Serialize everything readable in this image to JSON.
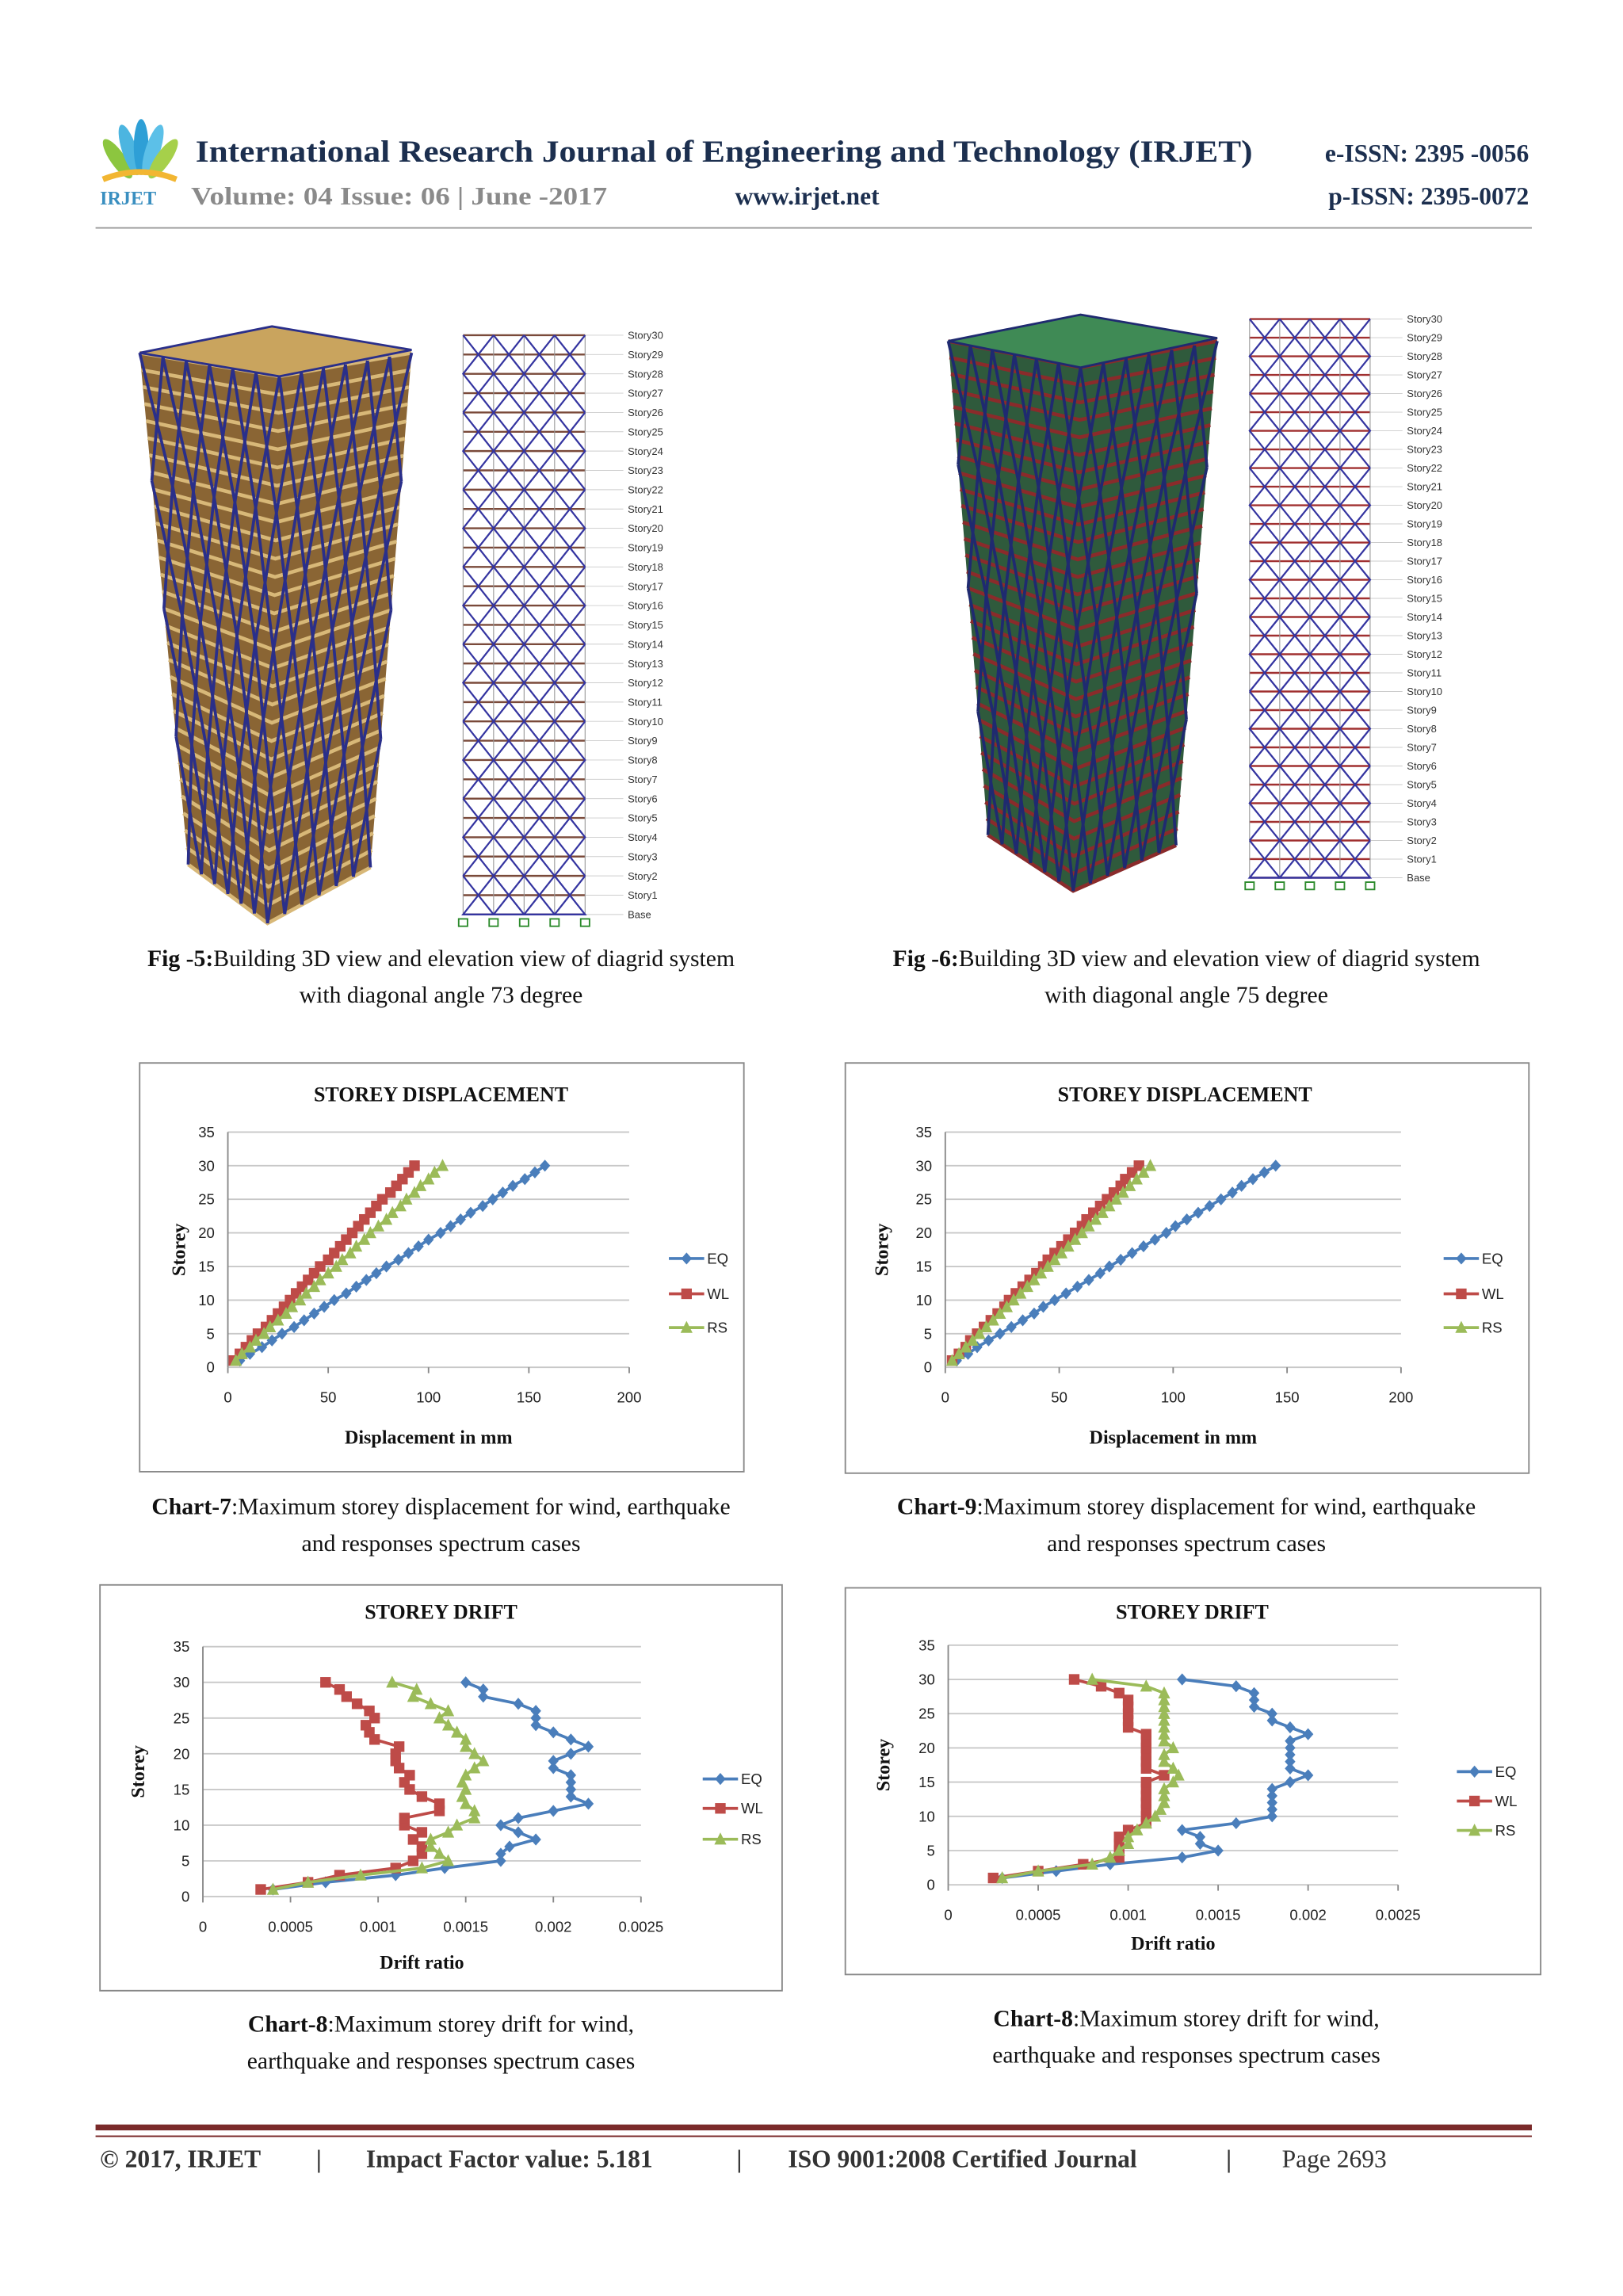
{
  "header": {
    "logo_text": "IRJET",
    "journal": "International Research Journal of Engineering and Technology (IRJET)",
    "eissn": "e-ISSN: 2395 -0056",
    "volume": "Volume: 04 Issue: 06 | June -2017",
    "website": "www.irjet.net",
    "pissn": "p-ISSN: 2395-0072"
  },
  "figures": [
    {
      "label": "Fig -5:",
      "text": "Building 3D view and elevation view of diagrid system with diagonal angle 73 degree",
      "story_labels": [
        "Story30",
        "Story29",
        "Story28",
        "Story27",
        "Story26",
        "Story25",
        "Story24",
        "Story23",
        "Story22",
        "Story21",
        "Story20",
        "Story19",
        "Story18",
        "Story17",
        "Story16",
        "Story15",
        "Story14",
        "Story13",
        "Story12",
        "Story11",
        "Story10",
        "Story9",
        "Story8",
        "Story7",
        "Story6",
        "Story5",
        "Story4",
        "Story3",
        "Story2",
        "Story1",
        "Base"
      ]
    },
    {
      "label": "Fig -6:",
      "text": "Building 3D view and elevation view of diagrid system with diagonal angle 75 degree",
      "story_labels": [
        "Story30",
        "Story29",
        "Story28",
        "Story27",
        "Story26",
        "Story25",
        "Story24",
        "Story23",
        "Story22",
        "Story21",
        "Story20",
        "Story19",
        "Story18",
        "Story17",
        "Story16",
        "Story15",
        "Story14",
        "Story13",
        "Story12",
        "Story11",
        "Story10",
        "Story9",
        "Story8",
        "Story7",
        "Story6",
        "Story5",
        "Story4",
        "Story3",
        "Story2",
        "Story1",
        "Base"
      ]
    }
  ],
  "chart_data": [
    {
      "type": "line",
      "title": "STOREY DISPLACEMENT",
      "x_label": "Displacement in mm",
      "y_label": "Storey",
      "xlim": [
        0,
        200
      ],
      "xticks": [
        0,
        50,
        100,
        150,
        200
      ],
      "ylim": [
        0,
        35
      ],
      "yticks": [
        0,
        5,
        10,
        15,
        20,
        25,
        30,
        35
      ],
      "grid": true,
      "legend": "right",
      "y": [
        1,
        2,
        3,
        4,
        5,
        6,
        7,
        8,
        9,
        10,
        11,
        12,
        13,
        14,
        15,
        16,
        17,
        18,
        19,
        20,
        21,
        22,
        23,
        24,
        25,
        26,
        27,
        28,
        29,
        30
      ],
      "series": [
        {
          "name": "EQ",
          "color": "#4a7ebb",
          "marker": "diamond",
          "x": [
            6,
            11,
            17,
            22,
            27,
            33,
            38,
            43,
            48,
            53,
            59,
            64,
            69,
            74,
            79,
            85,
            90,
            95,
            100,
            106,
            111,
            116,
            121,
            127,
            132,
            137,
            142,
            148,
            153,
            158
          ]
        },
        {
          "name": "WL",
          "color": "#be4b48",
          "marker": "square",
          "x": [
            3,
            6,
            9,
            12,
            15,
            19,
            22,
            25,
            28,
            31,
            34,
            37,
            40,
            43,
            46,
            50,
            53,
            56,
            59,
            62,
            65,
            68,
            71,
            74,
            77,
            81,
            84,
            87,
            90,
            93
          ]
        },
        {
          "name": "RS",
          "color": "#9bbb59",
          "marker": "triangle",
          "x": [
            4,
            7,
            11,
            14,
            18,
            21,
            25,
            29,
            32,
            36,
            39,
            43,
            46,
            50,
            54,
            57,
            61,
            64,
            68,
            71,
            75,
            79,
            82,
            86,
            89,
            93,
            96,
            100,
            103,
            107
          ]
        }
      ],
      "caption_label": "Chart-7",
      "caption_text": ":Maximum storey displacement for wind, earthquake and responses spectrum cases"
    },
    {
      "type": "line",
      "title": "STOREY DISPLACEMENT",
      "x_label": "Displacement in mm",
      "y_label": "Storey",
      "xlim": [
        0,
        200
      ],
      "xticks": [
        0,
        50,
        100,
        150,
        200
      ],
      "ylim": [
        0,
        35
      ],
      "yticks": [
        0,
        5,
        10,
        15,
        20,
        25,
        30,
        35
      ],
      "grid": true,
      "legend": "right",
      "y": [
        1,
        2,
        3,
        4,
        5,
        6,
        7,
        8,
        9,
        10,
        11,
        12,
        13,
        14,
        15,
        16,
        17,
        18,
        19,
        20,
        21,
        22,
        23,
        24,
        25,
        26,
        27,
        28,
        29,
        30
      ],
      "series": [
        {
          "name": "EQ",
          "color": "#4a7ebb",
          "marker": "diamond",
          "x": [
            5,
            10,
            14,
            19,
            24,
            29,
            34,
            39,
            43,
            48,
            53,
            58,
            63,
            68,
            72,
            77,
            82,
            87,
            92,
            97,
            101,
            106,
            111,
            116,
            121,
            126,
            130,
            135,
            140,
            145
          ]
        },
        {
          "name": "WL",
          "color": "#be4b48",
          "marker": "square",
          "x": [
            3,
            6,
            9,
            11,
            14,
            17,
            20,
            23,
            26,
            28,
            31,
            34,
            37,
            40,
            43,
            45,
            48,
            51,
            54,
            57,
            60,
            62,
            65,
            68,
            71,
            74,
            77,
            79,
            82,
            85
          ]
        },
        {
          "name": "RS",
          "color": "#9bbb59",
          "marker": "triangle",
          "x": [
            3,
            6,
            9,
            12,
            15,
            18,
            21,
            24,
            27,
            30,
            33,
            36,
            39,
            42,
            45,
            48,
            51,
            54,
            57,
            60,
            63,
            66,
            69,
            72,
            75,
            78,
            81,
            84,
            87,
            90
          ]
        }
      ],
      "caption_label": "Chart-9",
      "caption_text": ":Maximum storey displacement for wind, earthquake and responses spectrum cases"
    },
    {
      "type": "line",
      "title": "STOREY DRIFT",
      "x_label": "Drift ratio",
      "y_label": "Storey",
      "xlim": [
        0,
        0.0025
      ],
      "xticks": [
        0,
        0.0005,
        0.001,
        0.0015,
        0.002,
        0.0025
      ],
      "ylim": [
        0,
        35
      ],
      "yticks": [
        0,
        5,
        10,
        15,
        20,
        25,
        30,
        35
      ],
      "grid": true,
      "legend": "right",
      "y": [
        1,
        2,
        3,
        4,
        5,
        6,
        7,
        8,
        9,
        10,
        11,
        12,
        13,
        14,
        15,
        16,
        17,
        18,
        19,
        20,
        21,
        22,
        23,
        24,
        25,
        26,
        27,
        28,
        29,
        30
      ],
      "series": [
        {
          "name": "EQ",
          "color": "#4a7ebb",
          "marker": "diamond",
          "x": [
            0.0004,
            0.0007,
            0.0011,
            0.00138,
            0.0017,
            0.0017,
            0.00175,
            0.0019,
            0.0018,
            0.0017,
            0.0018,
            0.002,
            0.0022,
            0.0021,
            0.0021,
            0.0021,
            0.0021,
            0.002,
            0.002,
            0.0021,
            0.0022,
            0.0021,
            0.002,
            0.0019,
            0.0019,
            0.0019,
            0.0018,
            0.0016,
            0.0016,
            0.0015
          ]
        },
        {
          "name": "WL",
          "color": "#be4b48",
          "marker": "square",
          "x": [
            0.00033,
            0.0006,
            0.00078,
            0.0011,
            0.0012,
            0.00125,
            0.00125,
            0.0012,
            0.00125,
            0.00115,
            0.00115,
            0.00135,
            0.00135,
            0.00125,
            0.00118,
            0.00115,
            0.00118,
            0.00112,
            0.0011,
            0.0011,
            0.00112,
            0.00098,
            0.00095,
            0.00093,
            0.00098,
            0.00095,
            0.00088,
            0.00082,
            0.00078,
            0.0007
          ]
        },
        {
          "name": "RS",
          "color": "#9bbb59",
          "marker": "triangle",
          "x": [
            0.0004,
            0.0006,
            0.0009,
            0.00125,
            0.0014,
            0.00135,
            0.0013,
            0.0013,
            0.0014,
            0.00145,
            0.00155,
            0.00155,
            0.0015,
            0.00148,
            0.0015,
            0.00148,
            0.0015,
            0.00155,
            0.0016,
            0.00155,
            0.0015,
            0.0015,
            0.00145,
            0.0014,
            0.00135,
            0.0014,
            0.0013,
            0.0012,
            0.00122,
            0.00108
          ]
        }
      ],
      "caption_label": "Chart-8",
      "caption_text": ":Maximum storey drift for wind, earthquake and responses spectrum cases"
    },
    {
      "type": "line",
      "title": "STOREY DRIFT",
      "x_label": "Drift ratio",
      "y_label": "Storey",
      "xlim": [
        0,
        0.0025
      ],
      "xticks": [
        0,
        0.0005,
        0.001,
        0.0015,
        0.002,
        0.0025
      ],
      "ylim": [
        0,
        35
      ],
      "yticks": [
        0,
        5,
        10,
        15,
        20,
        25,
        30,
        35
      ],
      "grid": true,
      "legend": "right",
      "y": [
        1,
        2,
        3,
        4,
        5,
        6,
        7,
        8,
        9,
        10,
        11,
        12,
        13,
        14,
        15,
        16,
        17,
        18,
        19,
        20,
        21,
        22,
        23,
        24,
        25,
        26,
        27,
        28,
        29,
        30
      ],
      "series": [
        {
          "name": "EQ",
          "color": "#4a7ebb",
          "marker": "diamond",
          "x": [
            0.0003,
            0.0006,
            0.0009,
            0.0013,
            0.0015,
            0.0014,
            0.0014,
            0.0013,
            0.0016,
            0.0018,
            0.0018,
            0.0018,
            0.0018,
            0.0018,
            0.0019,
            0.002,
            0.0019,
            0.0019,
            0.0019,
            0.0019,
            0.0019,
            0.002,
            0.0019,
            0.0018,
            0.0018,
            0.0017,
            0.0017,
            0.0017,
            0.0016,
            0.0013
          ]
        },
        {
          "name": "WL",
          "color": "#be4b48",
          "marker": "square",
          "x": [
            0.00025,
            0.0005,
            0.00075,
            0.00095,
            0.00095,
            0.00095,
            0.00095,
            0.001,
            0.0011,
            0.0011,
            0.0011,
            0.0011,
            0.0011,
            0.0011,
            0.0011,
            0.0012,
            0.0011,
            0.0011,
            0.0011,
            0.0011,
            0.0011,
            0.0011,
            0.001,
            0.001,
            0.001,
            0.001,
            0.001,
            0.00095,
            0.00085,
            0.0007
          ]
        },
        {
          "name": "RS",
          "color": "#9bbb59",
          "marker": "triangle",
          "x": [
            0.0003,
            0.0005,
            0.0008,
            0.0009,
            0.00095,
            0.001,
            0.001,
            0.00105,
            0.0011,
            0.00115,
            0.00118,
            0.0012,
            0.0012,
            0.0012,
            0.00125,
            0.00128,
            0.00125,
            0.0012,
            0.0012,
            0.00125,
            0.0012,
            0.0012,
            0.0012,
            0.0012,
            0.0012,
            0.0012,
            0.0012,
            0.0012,
            0.0011,
            0.0008
          ]
        }
      ],
      "caption_label": "Chart-8",
      "caption_text": ":Maximum storey drift for wind, earthquake and responses spectrum cases"
    }
  ],
  "footer": {
    "copyright": "© 2017, IRJET",
    "separator": "|",
    "impact": "Impact Factor value: 5.181",
    "iso": "ISO 9001:2008 Certified Journal",
    "page": "Page 2693"
  }
}
